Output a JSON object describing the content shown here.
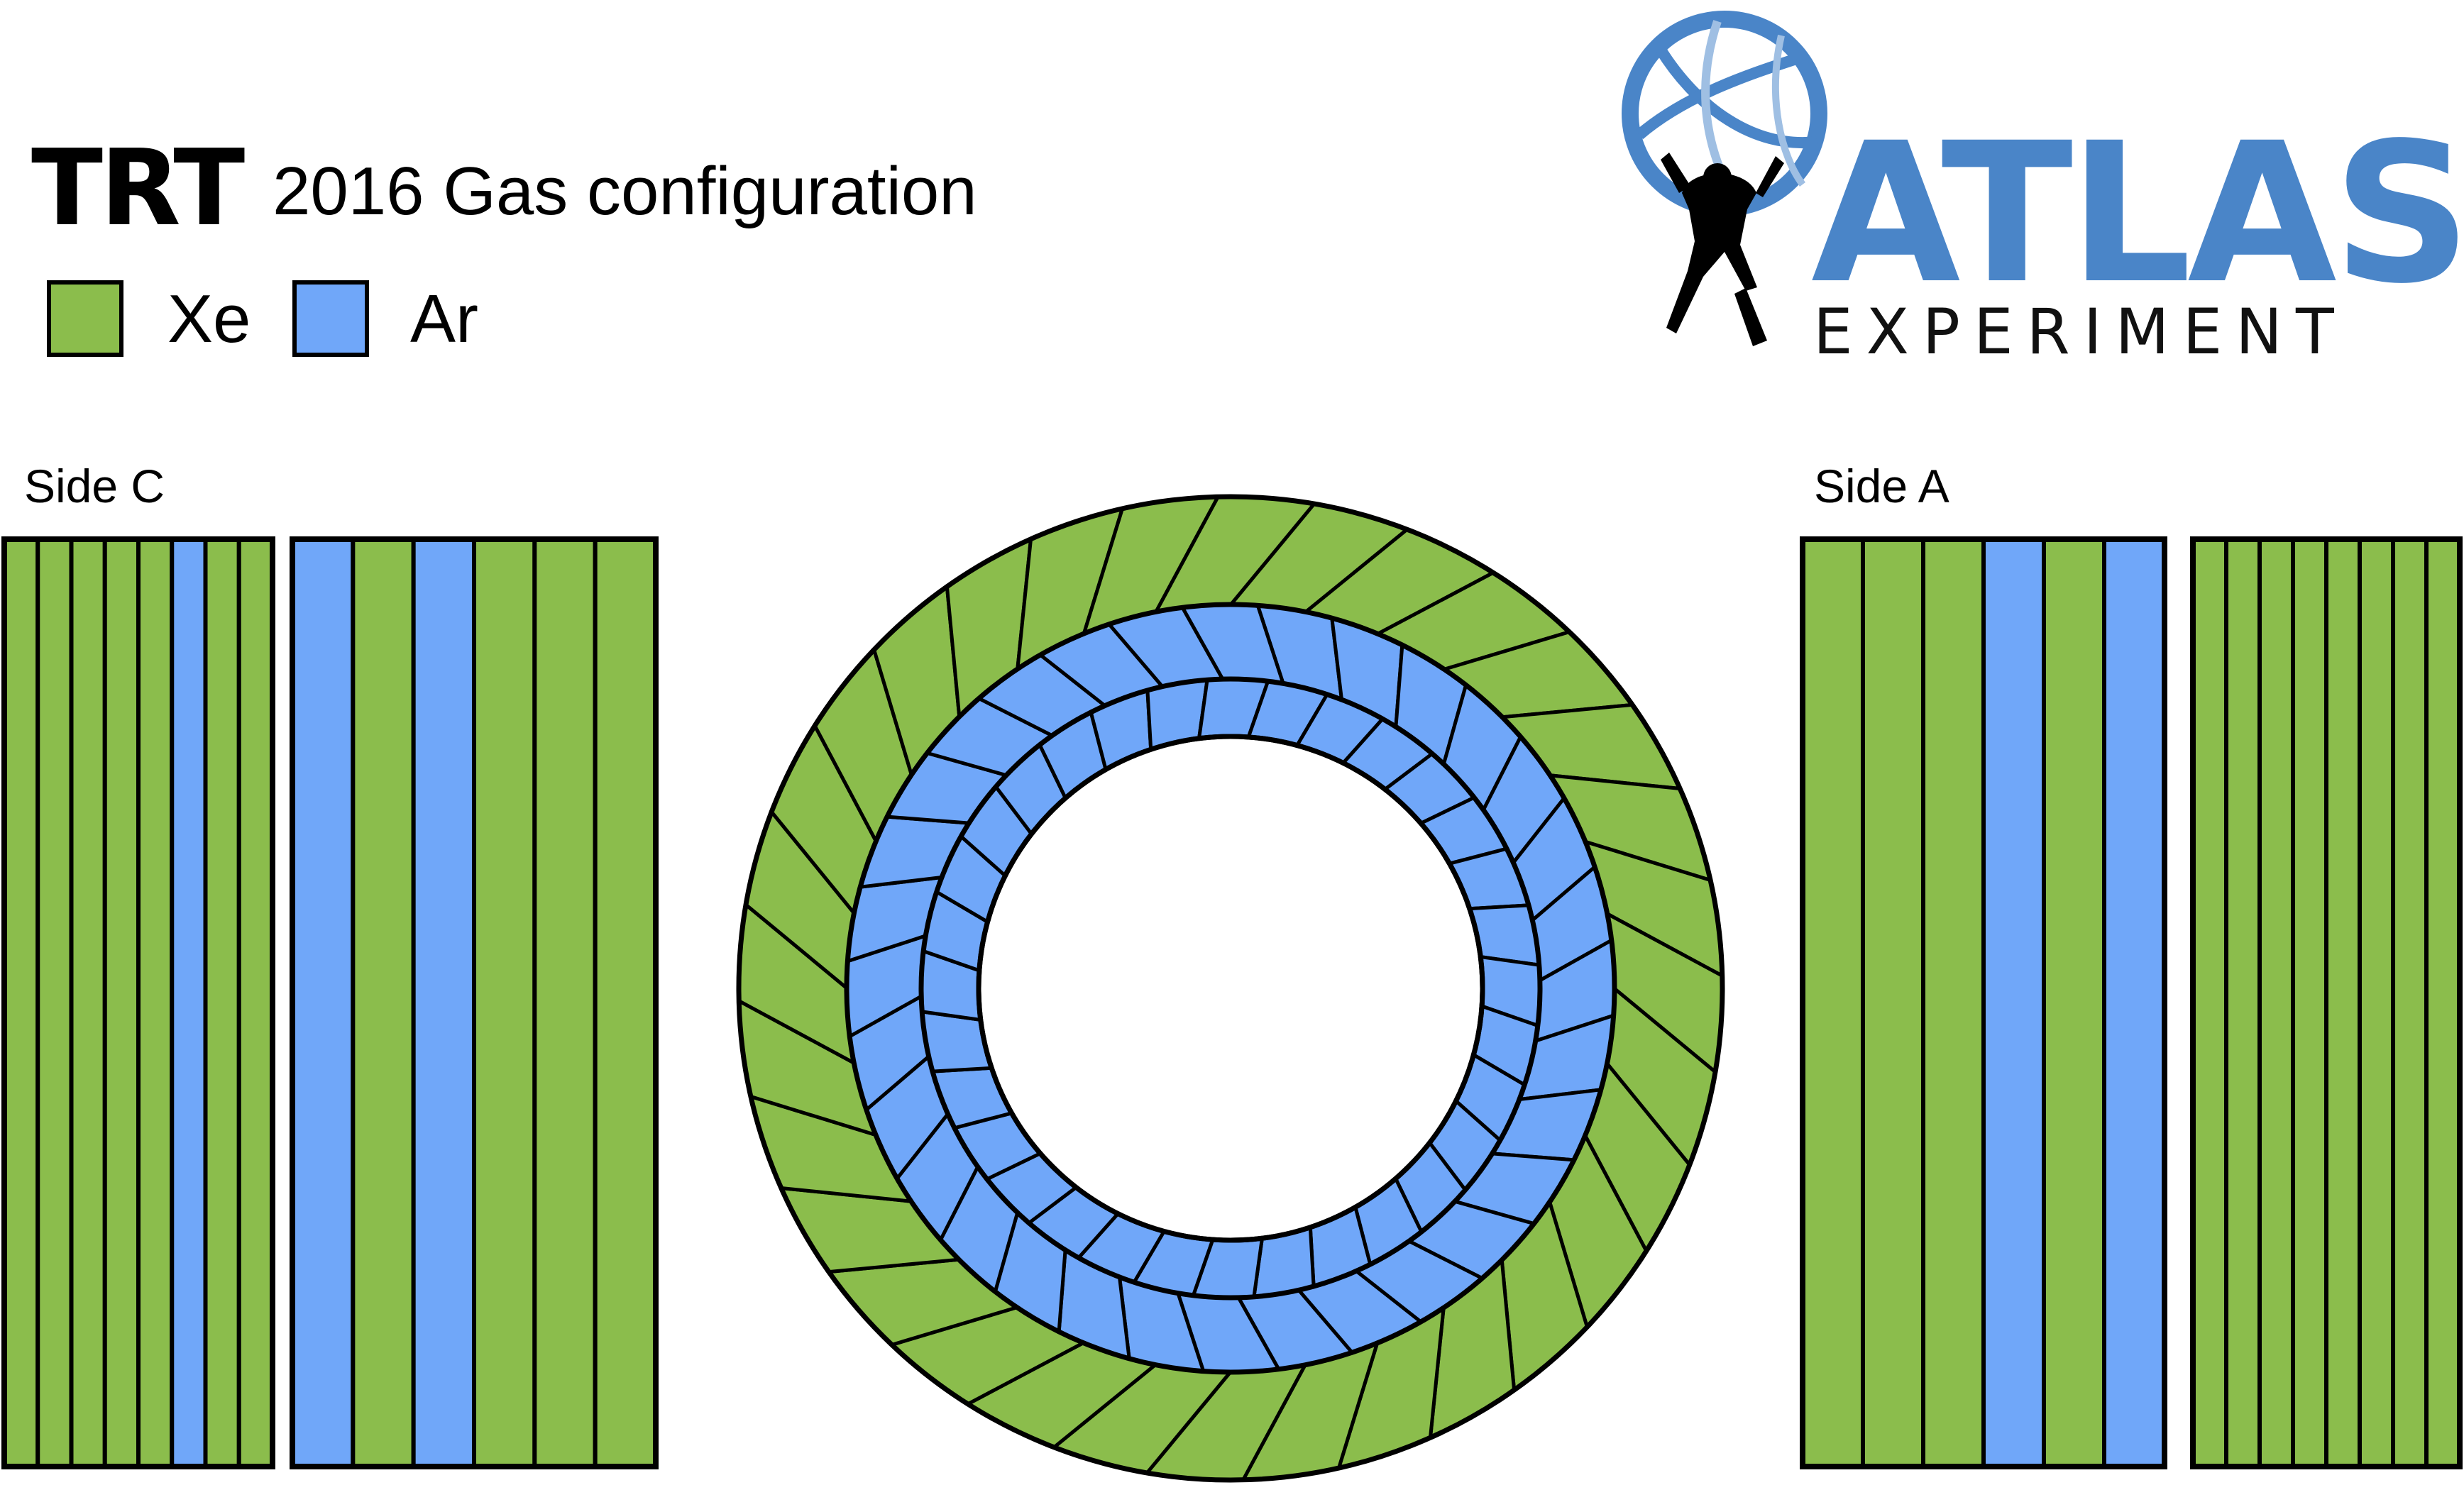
{
  "title": {
    "main": "TRT",
    "subtitle": "2016 Gas configuration"
  },
  "legend": [
    {
      "label": "Xe",
      "color": "#8bbd4c"
    },
    {
      "label": "Ar",
      "color": "#70a7f9"
    }
  ],
  "colors": {
    "xenon": "#8bbd4c",
    "argon": "#70a7f9",
    "outline": "#000000"
  },
  "logo": {
    "word": "ATLAS",
    "tagline": "EXPERIMENT",
    "color": "#4a85c8"
  },
  "side_c": {
    "label": "Side C",
    "outer_wheels": [
      "Xe",
      "Xe",
      "Xe",
      "Xe",
      "Xe",
      "Ar",
      "Xe",
      "Xe"
    ],
    "inner_wheels": [
      "Ar",
      "Xe",
      "Ar",
      "Xe",
      "Xe",
      "Xe"
    ]
  },
  "side_a": {
    "label": "Side A",
    "inner_wheels": [
      "Xe",
      "Xe",
      "Xe",
      "Ar",
      "Xe",
      "Ar"
    ],
    "outer_wheels": [
      "Xe",
      "Xe",
      "Xe",
      "Xe",
      "Xe",
      "Xe",
      "Xe",
      "Xe"
    ]
  },
  "barrel": {
    "rings": [
      {
        "layer": "outer",
        "gas": "Xe",
        "modules": 32
      },
      {
        "layer": "middle",
        "gas": "Ar",
        "modules": 32
      },
      {
        "layer": "inner",
        "gas": "Ar",
        "modules": 32
      }
    ]
  }
}
